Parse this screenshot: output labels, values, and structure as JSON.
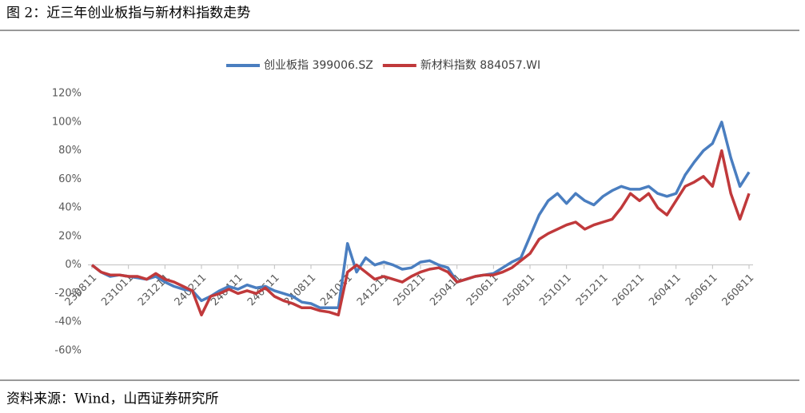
{
  "chart_data": {
    "type": "line",
    "title": "图 2：近三年创业板指与新材料指数走势",
    "source": "资料来源：Wind，山西证券研究所",
    "categories": [
      "230811",
      null,
      null,
      null,
      "231011",
      null,
      null,
      null,
      "231211",
      null,
      null,
      null,
      "240211",
      null,
      null,
      null,
      "240411",
      null,
      null,
      null,
      "240611",
      null,
      null,
      null,
      "240811",
      null,
      null,
      null,
      "241011",
      null,
      null,
      null,
      "241211",
      null,
      null,
      null,
      "250211",
      null,
      null,
      null,
      "250411",
      null,
      null,
      null,
      "250611",
      null,
      null,
      null,
      "250811",
      null,
      null,
      null,
      "251011",
      null,
      null,
      null,
      "251211",
      null,
      null,
      null,
      "260211",
      null,
      null,
      null,
      "260411",
      null,
      null,
      null,
      "260611",
      null,
      null,
      null,
      "260811"
    ],
    "series": [
      {
        "name": "创业板指 399006.SZ",
        "color": "#4a7ec0",
        "values": [
          0,
          -5,
          -8,
          -7,
          -8,
          -9,
          -10,
          -8,
          -12,
          -15,
          -17,
          -18,
          -25,
          -22,
          -18,
          -15,
          -17,
          -14,
          -16,
          -15,
          -18,
          -20,
          -22,
          -26,
          -27,
          -30,
          -30,
          -30,
          15,
          -5,
          5,
          0,
          2,
          0,
          -3,
          -2,
          2,
          3,
          0,
          -2,
          -12,
          -10,
          -8,
          -7,
          -6,
          -2,
          2,
          5,
          20,
          35,
          45,
          50,
          43,
          50,
          45,
          42,
          48,
          52,
          55,
          53,
          53,
          55,
          50,
          48,
          50,
          63,
          72,
          80,
          85,
          100,
          75,
          55,
          65
        ]
      },
      {
        "name": "新材料指数 884057.WI",
        "color": "#c0393b",
        "values": [
          0,
          -5,
          -7,
          -7,
          -8,
          -8,
          -10,
          -6,
          -10,
          -12,
          -15,
          -18,
          -35,
          -22,
          -20,
          -17,
          -20,
          -18,
          -20,
          -16,
          -22,
          -25,
          -27,
          -30,
          -30,
          -32,
          -33,
          -35,
          -5,
          0,
          -5,
          -10,
          -8,
          -10,
          -12,
          -8,
          -5,
          -3,
          -2,
          -5,
          -12,
          -10,
          -8,
          -7,
          -7,
          -5,
          -2,
          3,
          8,
          18,
          22,
          25,
          28,
          30,
          25,
          28,
          30,
          32,
          40,
          50,
          45,
          50,
          40,
          35,
          45,
          55,
          58,
          62,
          55,
          80,
          50,
          32,
          50
        ]
      }
    ],
    "ylim": [
      -60,
      120
    ],
    "yticks": [
      {
        "value": -60,
        "label": "-60%"
      },
      {
        "value": -40,
        "label": "-40%"
      },
      {
        "value": -20,
        "label": "-20%"
      },
      {
        "value": 0,
        "label": "0%"
      },
      {
        "value": 20,
        "label": "20%"
      },
      {
        "value": 40,
        "label": "40%"
      },
      {
        "value": 60,
        "label": "60%"
      },
      {
        "value": 80,
        "label": "80%"
      },
      {
        "value": 100,
        "label": "100%"
      },
      {
        "value": 120,
        "label": "120%"
      }
    ],
    "legend": "top"
  }
}
